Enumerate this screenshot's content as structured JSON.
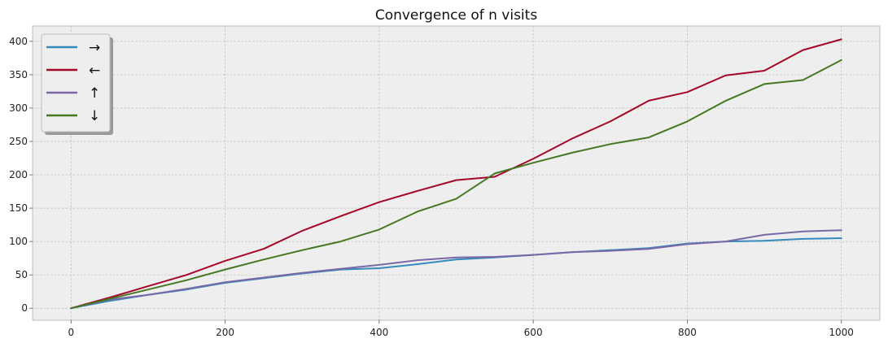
{
  "chart_data": {
    "type": "line",
    "title": "Convergence of n visits",
    "xlabel": "",
    "ylabel": "",
    "xlim": [
      -50,
      1050
    ],
    "ylim": [
      -18,
      423
    ],
    "x_ticks": [
      0,
      200,
      400,
      600,
      800,
      1000
    ],
    "y_ticks": [
      0,
      50,
      100,
      150,
      200,
      250,
      300,
      350,
      400
    ],
    "grid": true,
    "legend_position": "top-left",
    "colors": {
      "background": "#eeeeee",
      "grid": "#bbbbbb"
    },
    "series": [
      {
        "name": "→",
        "color": "#348abd",
        "x": [
          0,
          50,
          100,
          150,
          200,
          250,
          300,
          350,
          400,
          450,
          500,
          550,
          600,
          650,
          700,
          750,
          800,
          850,
          900,
          950,
          1000
        ],
        "y": [
          0,
          11,
          20,
          28,
          38,
          45,
          52,
          58,
          60,
          66,
          73,
          76,
          80,
          84,
          87,
          90,
          97,
          100,
          101,
          104,
          105
        ]
      },
      {
        "name": "←",
        "color": "#a60628",
        "x": [
          0,
          50,
          100,
          150,
          200,
          250,
          300,
          350,
          400,
          450,
          500,
          550,
          600,
          650,
          700,
          750,
          800,
          850,
          900,
          950,
          1000
        ],
        "y": [
          0,
          16,
          33,
          50,
          71,
          89,
          116,
          138,
          159,
          176,
          192,
          197,
          224,
          254,
          280,
          311,
          324,
          349,
          356,
          387,
          403
        ]
      },
      {
        "name": "↑",
        "color": "#7a68a6",
        "x": [
          0,
          50,
          100,
          150,
          200,
          250,
          300,
          350,
          400,
          450,
          500,
          550,
          600,
          650,
          700,
          750,
          800,
          850,
          900,
          950,
          1000
        ],
        "y": [
          0,
          13,
          20,
          29,
          39,
          46,
          53,
          59,
          65,
          72,
          76,
          77,
          80,
          84,
          86,
          89,
          96,
          100,
          110,
          115,
          117
        ]
      },
      {
        "name": "↓",
        "color": "#467821",
        "x": [
          0,
          50,
          100,
          150,
          200,
          250,
          300,
          350,
          400,
          450,
          500,
          550,
          600,
          650,
          700,
          750,
          800,
          850,
          900,
          950,
          1000
        ],
        "y": [
          0,
          14,
          28,
          42,
          58,
          73,
          87,
          100,
          118,
          145,
          164,
          202,
          218,
          233,
          246,
          256,
          280,
          311,
          336,
          342,
          372
        ]
      }
    ]
  }
}
